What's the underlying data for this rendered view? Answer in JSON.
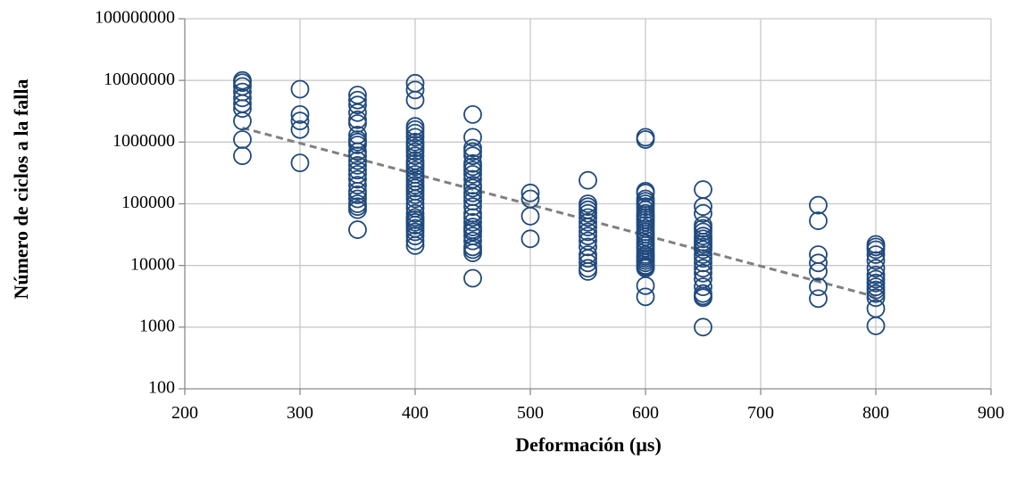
{
  "chart_data": {
    "type": "scatter",
    "title": "",
    "xlabel": "Deformación (µs)",
    "ylabel": "Número de ciclos a la falla",
    "xlim": [
      200,
      900
    ],
    "ylim": [
      100,
      100000000
    ],
    "y_scale": "log",
    "grid": true,
    "legend": "none",
    "x_ticks": [
      "200",
      "300",
      "400",
      "500",
      "600",
      "700",
      "800",
      "900"
    ],
    "y_ticks": [
      "100",
      "1000",
      "10000",
      "100000",
      "1000000",
      "10000000",
      "100000000"
    ],
    "marker_color": "#1f497d",
    "trendline_color": "#808080",
    "trendline": {
      "x": [
        250,
        800
      ],
      "y": [
        1700000,
        3100
      ]
    },
    "series": [
      {
        "points": [
          [
            250,
            10000000
          ],
          [
            250,
            9200000
          ],
          [
            250,
            8000000
          ],
          [
            250,
            6500000
          ],
          [
            250,
            5200000
          ],
          [
            250,
            4200000
          ],
          [
            250,
            3500000
          ],
          [
            250,
            2200000
          ],
          [
            250,
            1100000
          ],
          [
            250,
            600000
          ],
          [
            300,
            7200000
          ],
          [
            300,
            2800000
          ],
          [
            300,
            2200000
          ],
          [
            300,
            1600000
          ],
          [
            300,
            460000
          ],
          [
            350,
            5800000
          ],
          [
            350,
            4800000
          ],
          [
            350,
            4000000
          ],
          [
            350,
            3000000
          ],
          [
            350,
            2300000
          ],
          [
            350,
            2000000
          ],
          [
            350,
            1300000
          ],
          [
            350,
            1100000
          ],
          [
            350,
            1000000
          ],
          [
            350,
            900000
          ],
          [
            350,
            700000
          ],
          [
            350,
            600000
          ],
          [
            350,
            500000
          ],
          [
            350,
            420000
          ],
          [
            350,
            350000
          ],
          [
            350,
            300000
          ],
          [
            350,
            250000
          ],
          [
            350,
            200000
          ],
          [
            350,
            160000
          ],
          [
            350,
            140000
          ],
          [
            350,
            120000
          ],
          [
            350,
            100000
          ],
          [
            350,
            90000
          ],
          [
            350,
            80000
          ],
          [
            350,
            38000
          ],
          [
            400,
            9000000
          ],
          [
            400,
            7000000
          ],
          [
            400,
            4800000
          ],
          [
            400,
            1800000
          ],
          [
            400,
            1600000
          ],
          [
            400,
            1400000
          ],
          [
            400,
            1200000
          ],
          [
            400,
            1000000
          ],
          [
            400,
            900000
          ],
          [
            400,
            800000
          ],
          [
            400,
            700000
          ],
          [
            400,
            600000
          ],
          [
            400,
            500000
          ],
          [
            400,
            450000
          ],
          [
            400,
            400000
          ],
          [
            400,
            350000
          ],
          [
            400,
            300000
          ],
          [
            400,
            260000
          ],
          [
            400,
            230000
          ],
          [
            400,
            200000
          ],
          [
            400,
            180000
          ],
          [
            400,
            160000
          ],
          [
            400,
            140000
          ],
          [
            400,
            120000
          ],
          [
            400,
            100000
          ],
          [
            400,
            85000
          ],
          [
            400,
            70000
          ],
          [
            400,
            60000
          ],
          [
            400,
            55000
          ],
          [
            400,
            50000
          ],
          [
            400,
            45000
          ],
          [
            400,
            40000
          ],
          [
            400,
            35000
          ],
          [
            400,
            30000
          ],
          [
            400,
            25000
          ],
          [
            400,
            21000
          ],
          [
            450,
            2800000
          ],
          [
            450,
            1200000
          ],
          [
            450,
            800000
          ],
          [
            450,
            700000
          ],
          [
            450,
            600000
          ],
          [
            450,
            450000
          ],
          [
            450,
            400000
          ],
          [
            450,
            350000
          ],
          [
            450,
            300000
          ],
          [
            450,
            250000
          ],
          [
            450,
            200000
          ],
          [
            450,
            180000
          ],
          [
            450,
            150000
          ],
          [
            450,
            130000
          ],
          [
            450,
            110000
          ],
          [
            450,
            90000
          ],
          [
            450,
            70000
          ],
          [
            450,
            60000
          ],
          [
            450,
            50000
          ],
          [
            450,
            42000
          ],
          [
            450,
            38000
          ],
          [
            450,
            35000
          ],
          [
            450,
            30000
          ],
          [
            450,
            25000
          ],
          [
            450,
            20000
          ],
          [
            450,
            18000
          ],
          [
            450,
            16000
          ],
          [
            450,
            6200
          ],
          [
            500,
            150000
          ],
          [
            500,
            120000
          ],
          [
            500,
            63000
          ],
          [
            500,
            27000
          ],
          [
            550,
            240000
          ],
          [
            550,
            100000
          ],
          [
            550,
            90000
          ],
          [
            550,
            80000
          ],
          [
            550,
            70000
          ],
          [
            550,
            60000
          ],
          [
            550,
            50000
          ],
          [
            550,
            42000
          ],
          [
            550,
            35000
          ],
          [
            550,
            30000
          ],
          [
            550,
            25000
          ],
          [
            550,
            20000
          ],
          [
            550,
            15000
          ],
          [
            550,
            13000
          ],
          [
            550,
            11000
          ],
          [
            550,
            9000
          ],
          [
            550,
            8000
          ],
          [
            600,
            1200000
          ],
          [
            600,
            1100000
          ],
          [
            600,
            160000
          ],
          [
            600,
            150000
          ],
          [
            600,
            120000
          ],
          [
            600,
            110000
          ],
          [
            600,
            100000
          ],
          [
            600,
            90000
          ],
          [
            600,
            80000
          ],
          [
            600,
            70000
          ],
          [
            600,
            65000
          ],
          [
            600,
            60000
          ],
          [
            600,
            55000
          ],
          [
            600,
            50000
          ],
          [
            600,
            45000
          ],
          [
            600,
            40000
          ],
          [
            600,
            35000
          ],
          [
            600,
            32000
          ],
          [
            600,
            29000
          ],
          [
            600,
            26000
          ],
          [
            600,
            23000
          ],
          [
            600,
            21000
          ],
          [
            600,
            19000
          ],
          [
            600,
            17000
          ],
          [
            600,
            15000
          ],
          [
            600,
            14000
          ],
          [
            600,
            13000
          ],
          [
            600,
            12000
          ],
          [
            600,
            11000
          ],
          [
            600,
            10000
          ],
          [
            600,
            9500
          ],
          [
            600,
            9000
          ],
          [
            600,
            4700
          ],
          [
            600,
            3100
          ],
          [
            650,
            170000
          ],
          [
            650,
            90000
          ],
          [
            650,
            70000
          ],
          [
            650,
            45000
          ],
          [
            650,
            40000
          ],
          [
            650,
            35000
          ],
          [
            650,
            30000
          ],
          [
            650,
            27000
          ],
          [
            650,
            24000
          ],
          [
            650,
            22000
          ],
          [
            650,
            20000
          ],
          [
            650,
            18000
          ],
          [
            650,
            15000
          ],
          [
            650,
            13000
          ],
          [
            650,
            11000
          ],
          [
            650,
            9000
          ],
          [
            650,
            7500
          ],
          [
            650,
            6000
          ],
          [
            650,
            4500
          ],
          [
            650,
            3500
          ],
          [
            650,
            3200
          ],
          [
            650,
            3000
          ],
          [
            650,
            1000
          ],
          [
            750,
            95000
          ],
          [
            750,
            53000
          ],
          [
            750,
            15000
          ],
          [
            750,
            11000
          ],
          [
            750,
            8000
          ],
          [
            750,
            4500
          ],
          [
            750,
            2900
          ],
          [
            800,
            22000
          ],
          [
            800,
            20000
          ],
          [
            800,
            18000
          ],
          [
            800,
            15000
          ],
          [
            800,
            12000
          ],
          [
            800,
            9000
          ],
          [
            800,
            7000
          ],
          [
            800,
            6000
          ],
          [
            800,
            5200
          ],
          [
            800,
            4500
          ],
          [
            800,
            4000
          ],
          [
            800,
            3500
          ],
          [
            800,
            3000
          ],
          [
            800,
            2000
          ],
          [
            800,
            1050
          ]
        ]
      }
    ]
  }
}
